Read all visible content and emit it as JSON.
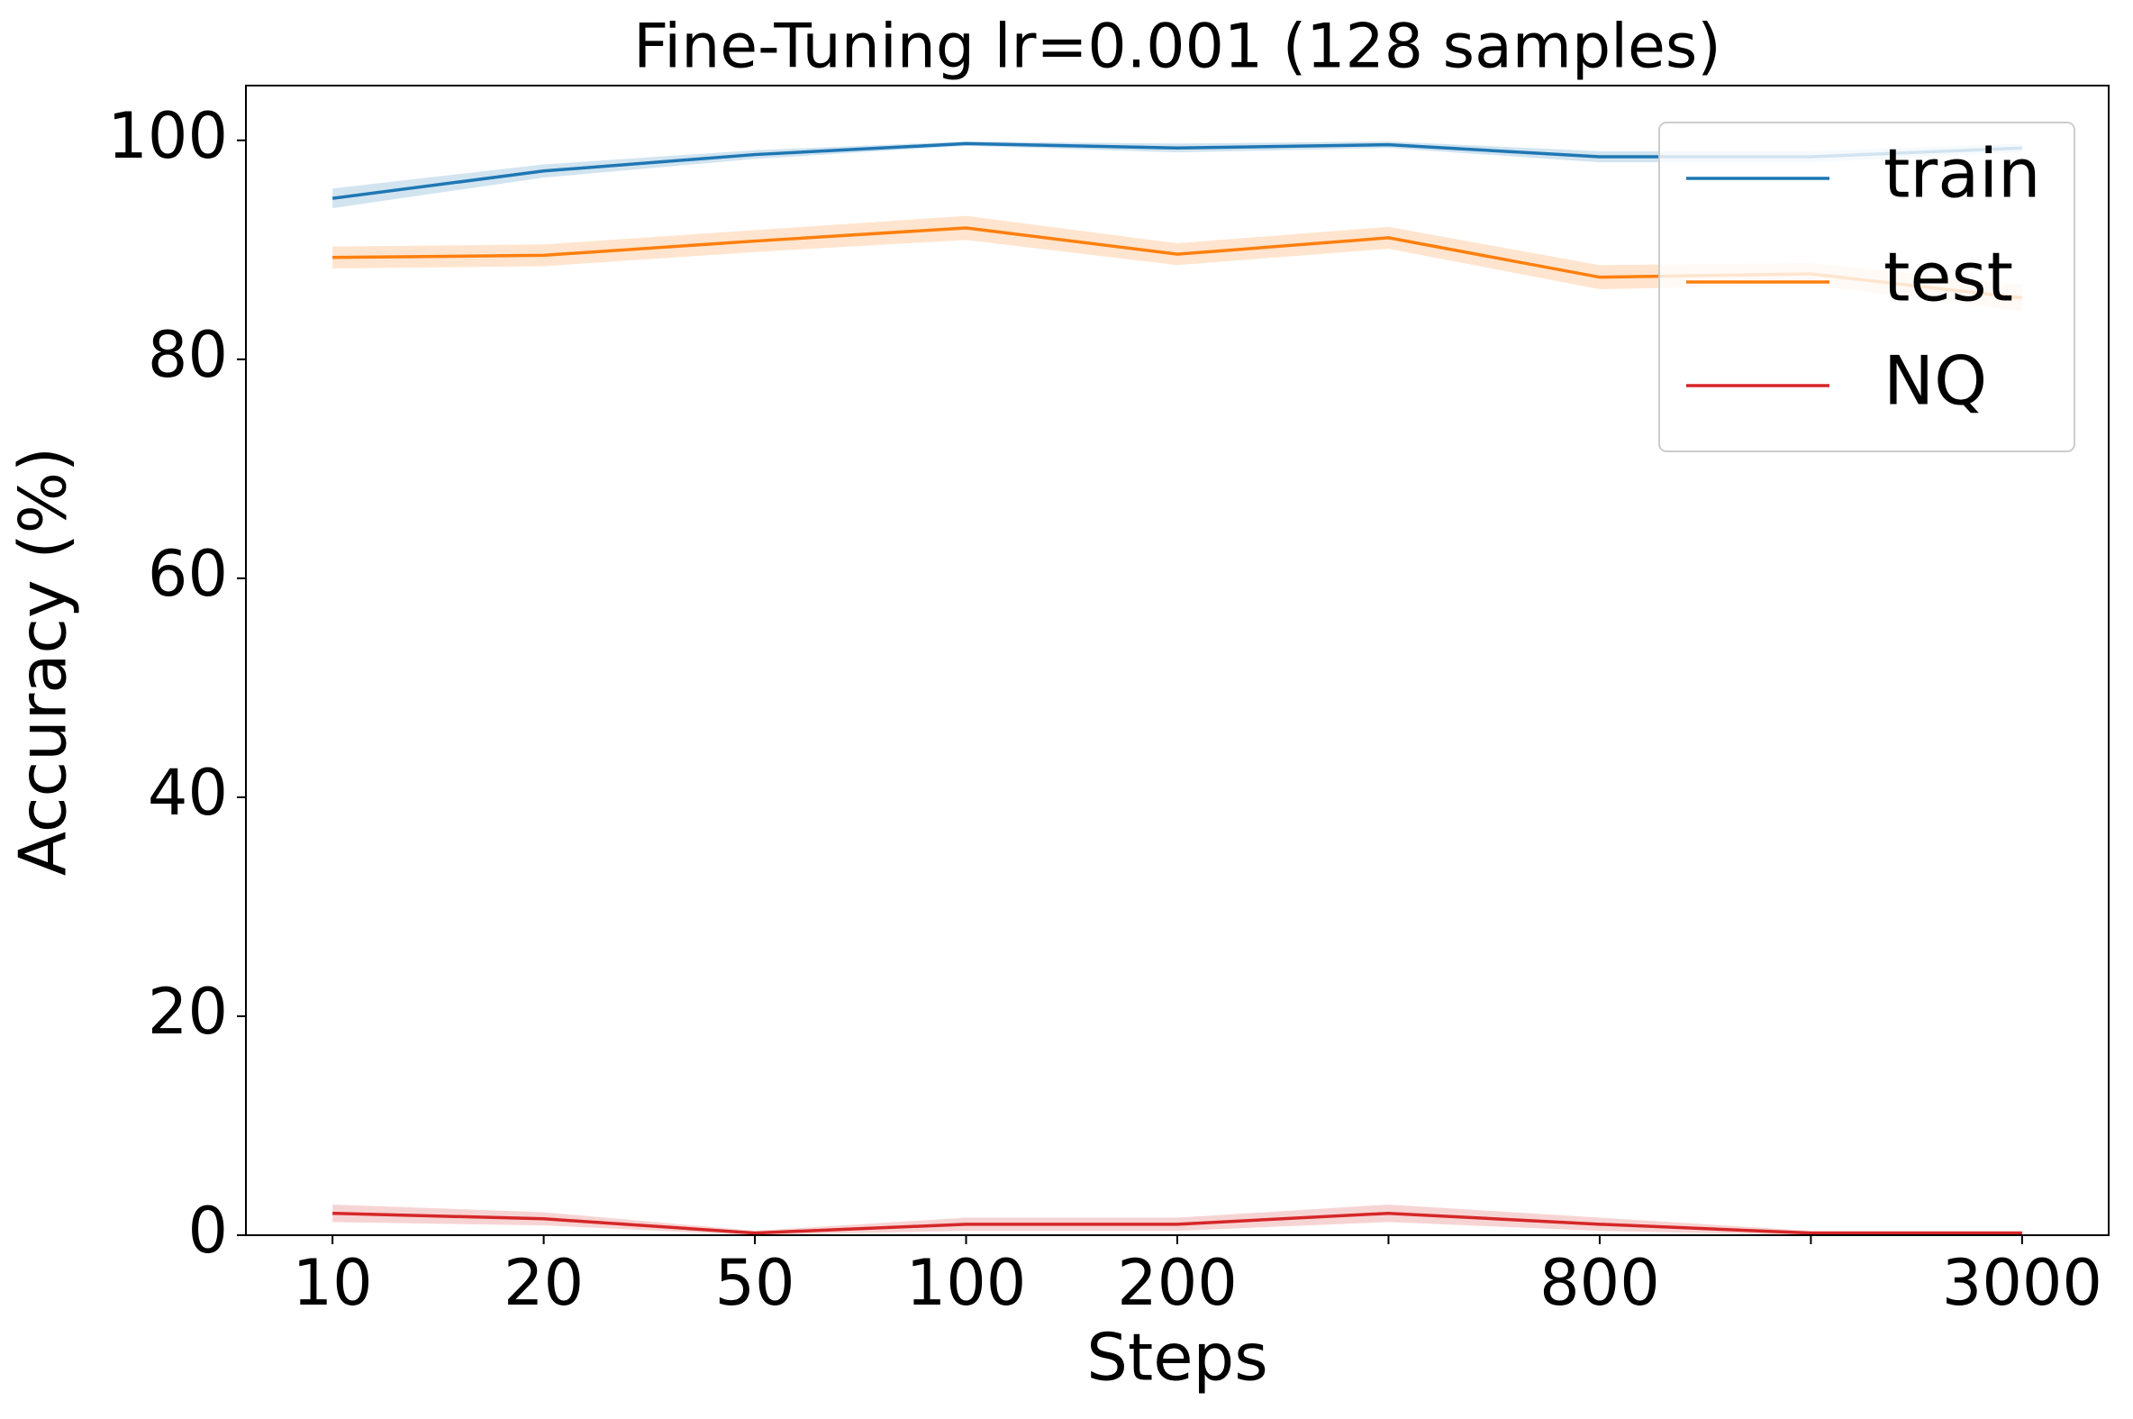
{
  "chart_data": {
    "type": "line",
    "title": "Fine-Tuning lr=0.001  (128 samples)",
    "x_label": "Steps",
    "y_label": "Accuracy (%)",
    "categories": [
      "10",
      "20",
      "50",
      "100",
      "200",
      null,
      "800",
      null,
      "3000"
    ],
    "series": [
      {
        "name": "train",
        "color": "#1f77b4",
        "values": [
          94.7,
          97.2,
          98.7,
          99.7,
          99.3,
          99.6,
          98.5,
          98.5,
          99.3
        ],
        "errors": [
          0.9,
          0.6,
          0.4,
          0.2,
          0.4,
          0.3,
          0.5,
          0.5,
          0.4
        ]
      },
      {
        "name": "test",
        "color": "#ff7f0e",
        "values": [
          89.3,
          89.5,
          90.8,
          92.0,
          89.6,
          91.1,
          87.5,
          87.8,
          85.6
        ],
        "errors": [
          1.0,
          1.0,
          1.0,
          1.1,
          1.0,
          1.0,
          1.1,
          1.0,
          1.2
        ]
      },
      {
        "name": "NQ",
        "color": "#d62728",
        "values": [
          2.0,
          1.5,
          0.2,
          1.0,
          1.0,
          2.0,
          1.0,
          0.2,
          0.2
        ],
        "errors": [
          0.8,
          0.6,
          0.2,
          0.6,
          0.6,
          0.8,
          0.6,
          0.2,
          0.2
        ]
      }
    ],
    "ylim": [
      0,
      105
    ],
    "yticks": [
      0,
      20,
      40,
      60,
      80,
      100
    ],
    "grid": false,
    "legend": "upper right"
  }
}
